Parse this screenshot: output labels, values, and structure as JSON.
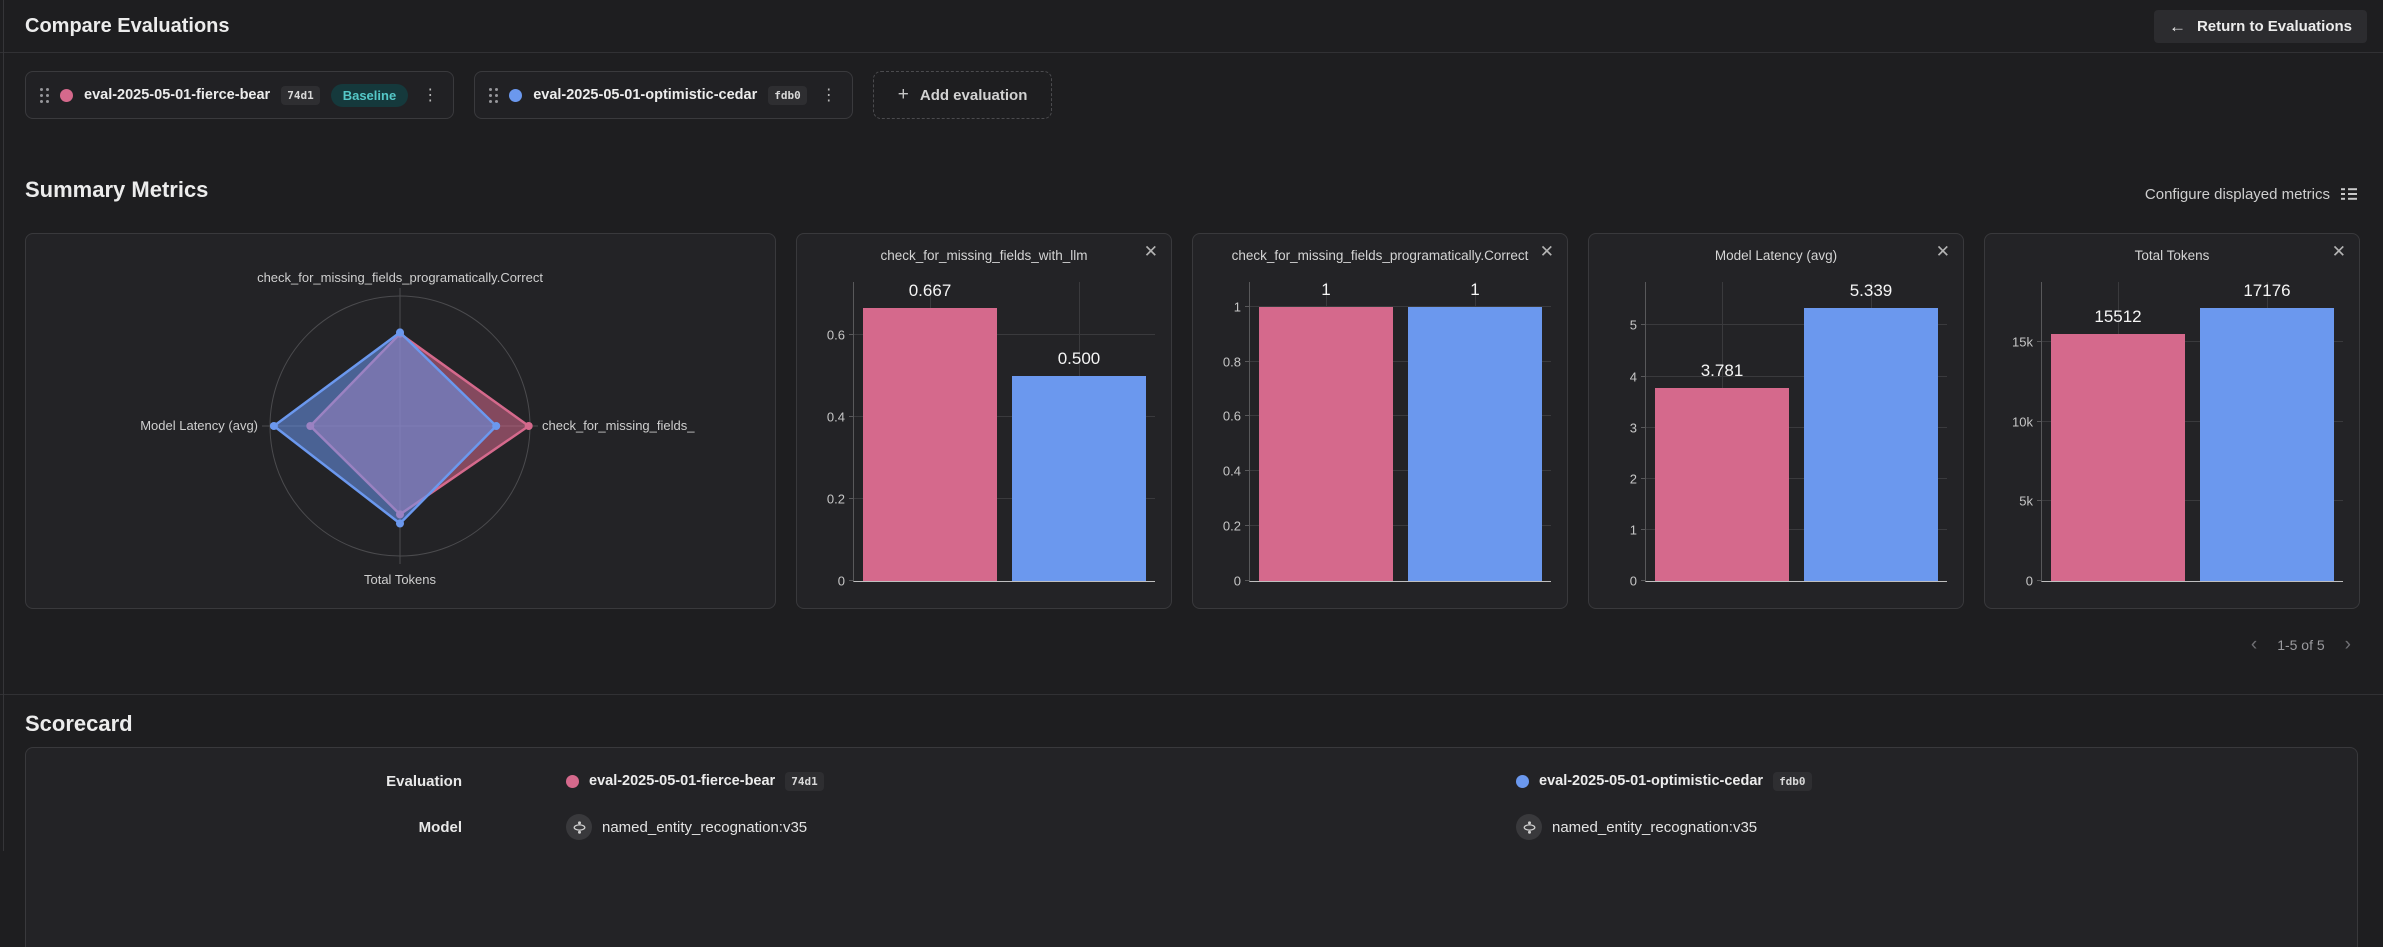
{
  "icons": {
    "back_arrow": "←",
    "plus": "+",
    "close": "✕",
    "kebab": "⋮",
    "chevron_left": "‹",
    "chevron_right": "›"
  },
  "header": {
    "title": "Compare Evaluations",
    "return_label": "Return to Evaluations"
  },
  "evaluations_bar": {
    "evaluations": [
      {
        "name": "eval-2025-05-01-fierce-bear",
        "hash": "74d1",
        "badge": "Baseline",
        "color": "#d5698c"
      },
      {
        "name": "eval-2025-05-01-optimistic-cedar",
        "hash": "fdb0",
        "badge": null,
        "color": "#6b98ee"
      }
    ],
    "add_label": "Add evaluation"
  },
  "summary": {
    "title": "Summary Metrics",
    "configure_label": "Configure displayed metrics",
    "pagination_label": "1-5 of 5"
  },
  "chart_data": [
    {
      "type": "radar",
      "axes": [
        "check_for_missing_fields_programatically.Correct",
        "check_for_missing_fields_",
        "Total Tokens",
        "Model Latency (avg)"
      ],
      "series": [
        {
          "name": "eval-2025-05-01-fierce-bear",
          "color": "#d5698c",
          "values": [
            1,
            0.667,
            15512,
            3.781
          ],
          "normalized": [
            0.71,
            0.99,
            0.68,
            0.69
          ]
        },
        {
          "name": "eval-2025-05-01-optimistic-cedar",
          "color": "#6b98ee",
          "values": [
            1,
            0.5,
            17176,
            5.339
          ],
          "normalized": [
            0.72,
            0.74,
            0.75,
            0.97
          ]
        }
      ]
    },
    {
      "type": "bar",
      "title": "check_for_missing_fields_with_llm",
      "categories": [
        "eval-2025-05-01-fierce-bear",
        "eval-2025-05-01-optimistic-cedar"
      ],
      "values": [
        0.667,
        0.5
      ],
      "value_labels": [
        "0.667",
        "0.500"
      ],
      "ticks": [
        0,
        0.2,
        0.4,
        0.6
      ],
      "tick_labels": [
        "0",
        "0.2",
        "0.4",
        "0.6"
      ],
      "ymax": 0.73
    },
    {
      "type": "bar",
      "title": "check_for_missing_fields_programatically.Correct",
      "categories": [
        "eval-2025-05-01-fierce-bear",
        "eval-2025-05-01-optimistic-cedar"
      ],
      "values": [
        1,
        1
      ],
      "value_labels": [
        "1",
        "1"
      ],
      "ticks": [
        0,
        0.2,
        0.4,
        0.6,
        0.8,
        1
      ],
      "tick_labels": [
        "0",
        "0.2",
        "0.4",
        "0.6",
        "0.8",
        "1"
      ],
      "ymax": 1.09
    },
    {
      "type": "bar",
      "title": "Model Latency (avg)",
      "categories": [
        "eval-2025-05-01-fierce-bear",
        "eval-2025-05-01-optimistic-cedar"
      ],
      "values": [
        3.781,
        5.339
      ],
      "value_labels": [
        "3.781",
        "5.339"
      ],
      "ticks": [
        0,
        1,
        2,
        3,
        4,
        5
      ],
      "tick_labels": [
        "0",
        "1",
        "2",
        "3",
        "4",
        "5"
      ],
      "ymax": 5.85
    },
    {
      "type": "bar",
      "title": "Total Tokens",
      "categories": [
        "eval-2025-05-01-fierce-bear",
        "eval-2025-05-01-optimistic-cedar"
      ],
      "values": [
        15512,
        17176
      ],
      "value_labels": [
        "15512",
        "17176"
      ],
      "ticks": [
        0,
        5000,
        10000,
        15000
      ],
      "tick_labels": [
        "0",
        "5k",
        "10k",
        "15k"
      ],
      "ymax": 18800
    }
  ],
  "scorecard": {
    "title": "Scorecard",
    "rows": [
      {
        "label": "Evaluation",
        "cells": [
          {
            "name": "eval-2025-05-01-fierce-bear",
            "hash": "74d1",
            "dot_color": "#d5698c"
          },
          {
            "name": "eval-2025-05-01-optimistic-cedar",
            "hash": "fdb0",
            "dot_color": "#6b98ee"
          }
        ]
      },
      {
        "label": "Model",
        "cells": [
          {
            "name": "named_entity_recognation:v35",
            "icon": "model"
          },
          {
            "name": "named_entity_recognation:v35",
            "icon": "model"
          }
        ]
      }
    ]
  }
}
